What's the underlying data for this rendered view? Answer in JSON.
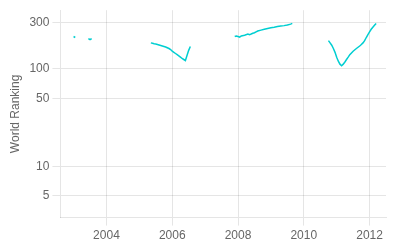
{
  "chart_data": {
    "type": "line",
    "ylabel": "World Ranking",
    "color": "#00CED1",
    "series": [
      {
        "x": [
          2003.0,
          2003.05
        ],
        "values": [
          215,
          210
        ]
      },
      {
        "x": [
          2003.45,
          2003.5,
          2003.55
        ],
        "values": [
          205,
          200,
          205
        ]
      },
      {
        "x": [
          2005.35,
          2005.4,
          2005.45,
          2005.5,
          2005.55,
          2005.6,
          2005.65,
          2005.7,
          2005.75,
          2005.8,
          2005.85,
          2005.9,
          2005.95,
          2006.0,
          2006.05,
          2006.1,
          2006.15,
          2006.2,
          2006.25,
          2006.3,
          2006.35,
          2006.4,
          2006.5,
          2006.55
        ],
        "values": [
          185,
          183,
          181,
          180,
          178,
          176,
          174,
          172,
          170,
          168,
          165,
          162,
          158,
          152,
          148,
          144,
          140,
          136,
          132,
          128,
          125,
          122,
          155,
          170
        ]
      },
      {
        "x": [
          2007.9,
          2007.95,
          2008.0,
          2008.05,
          2008.1,
          2008.2,
          2008.3,
          2008.35,
          2008.4,
          2008.45,
          2008.5,
          2008.55,
          2008.6,
          2008.7,
          2008.8,
          2008.9,
          2009.0,
          2009.1,
          2009.2,
          2009.3,
          2009.4,
          2009.5,
          2009.6,
          2009.65
        ],
        "values": [
          215,
          218,
          215,
          212,
          218,
          222,
          228,
          225,
          228,
          232,
          235,
          240,
          245,
          250,
          255,
          260,
          265,
          268,
          272,
          275,
          278,
          282,
          288,
          293
        ]
      },
      {
        "x": [
          2010.75,
          2010.8,
          2010.85,
          2010.9,
          2010.95,
          2011.0,
          2011.05,
          2011.1,
          2011.15,
          2011.2,
          2011.25,
          2011.3,
          2011.35,
          2011.4,
          2011.5,
          2011.6,
          2011.7,
          2011.75,
          2011.8,
          2011.85,
          2011.9,
          2011.95,
          2012.0,
          2012.05,
          2012.1,
          2012.15,
          2012.2
        ],
        "values": [
          195,
          185,
          175,
          162,
          148,
          132,
          120,
          112,
          108,
          112,
          118,
          125,
          132,
          140,
          152,
          162,
          172,
          178,
          185,
          195,
          210,
          225,
          240,
          255,
          268,
          280,
          293
        ]
      }
    ],
    "xlim": [
      2002.6,
      2012.5
    ],
    "ylim": [
      3,
      400
    ],
    "xticks": [
      2004,
      2006,
      2008,
      2010,
      2012
    ],
    "yticks": [
      5,
      10,
      50,
      100,
      300
    ],
    "log": "y",
    "grid": true
  }
}
